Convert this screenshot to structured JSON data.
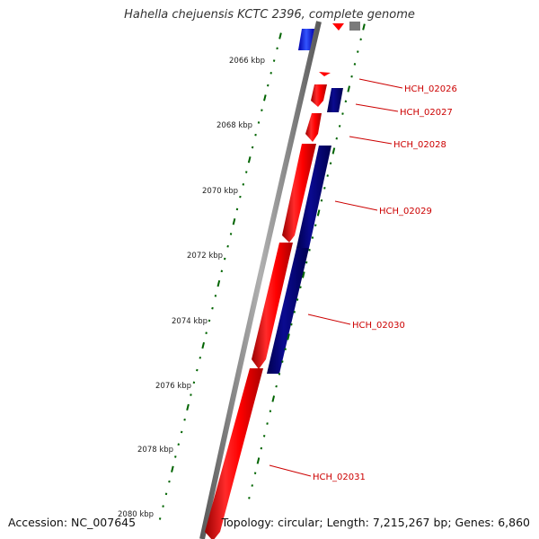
{
  "title": "Hahella chejuensis KCTC 2396, complete genome",
  "footer": {
    "accession": "Accession: NC_007645",
    "topology": "Topology: circular; Length: 7,215,267 bp; Genes: 6,860"
  },
  "colors": {
    "forward_gene": "#ff0000",
    "reverse_gene": "#000080",
    "other_feature": "#0033ff",
    "backbone": "#888888",
    "tick": "#006400",
    "label": "#cc0000"
  },
  "scale_labels": [
    "2066 kbp",
    "2068 kbp",
    "2070 kbp",
    "2072 kbp",
    "2074 kbp",
    "2076 kbp",
    "2078 kbp",
    "2080 kbp"
  ],
  "genes": [
    {
      "id": "HCH_02026"
    },
    {
      "id": "HCH_02027"
    },
    {
      "id": "HCH_02028"
    },
    {
      "id": "HCH_02029"
    },
    {
      "id": "HCH_02030"
    },
    {
      "id": "HCH_02031"
    }
  ]
}
